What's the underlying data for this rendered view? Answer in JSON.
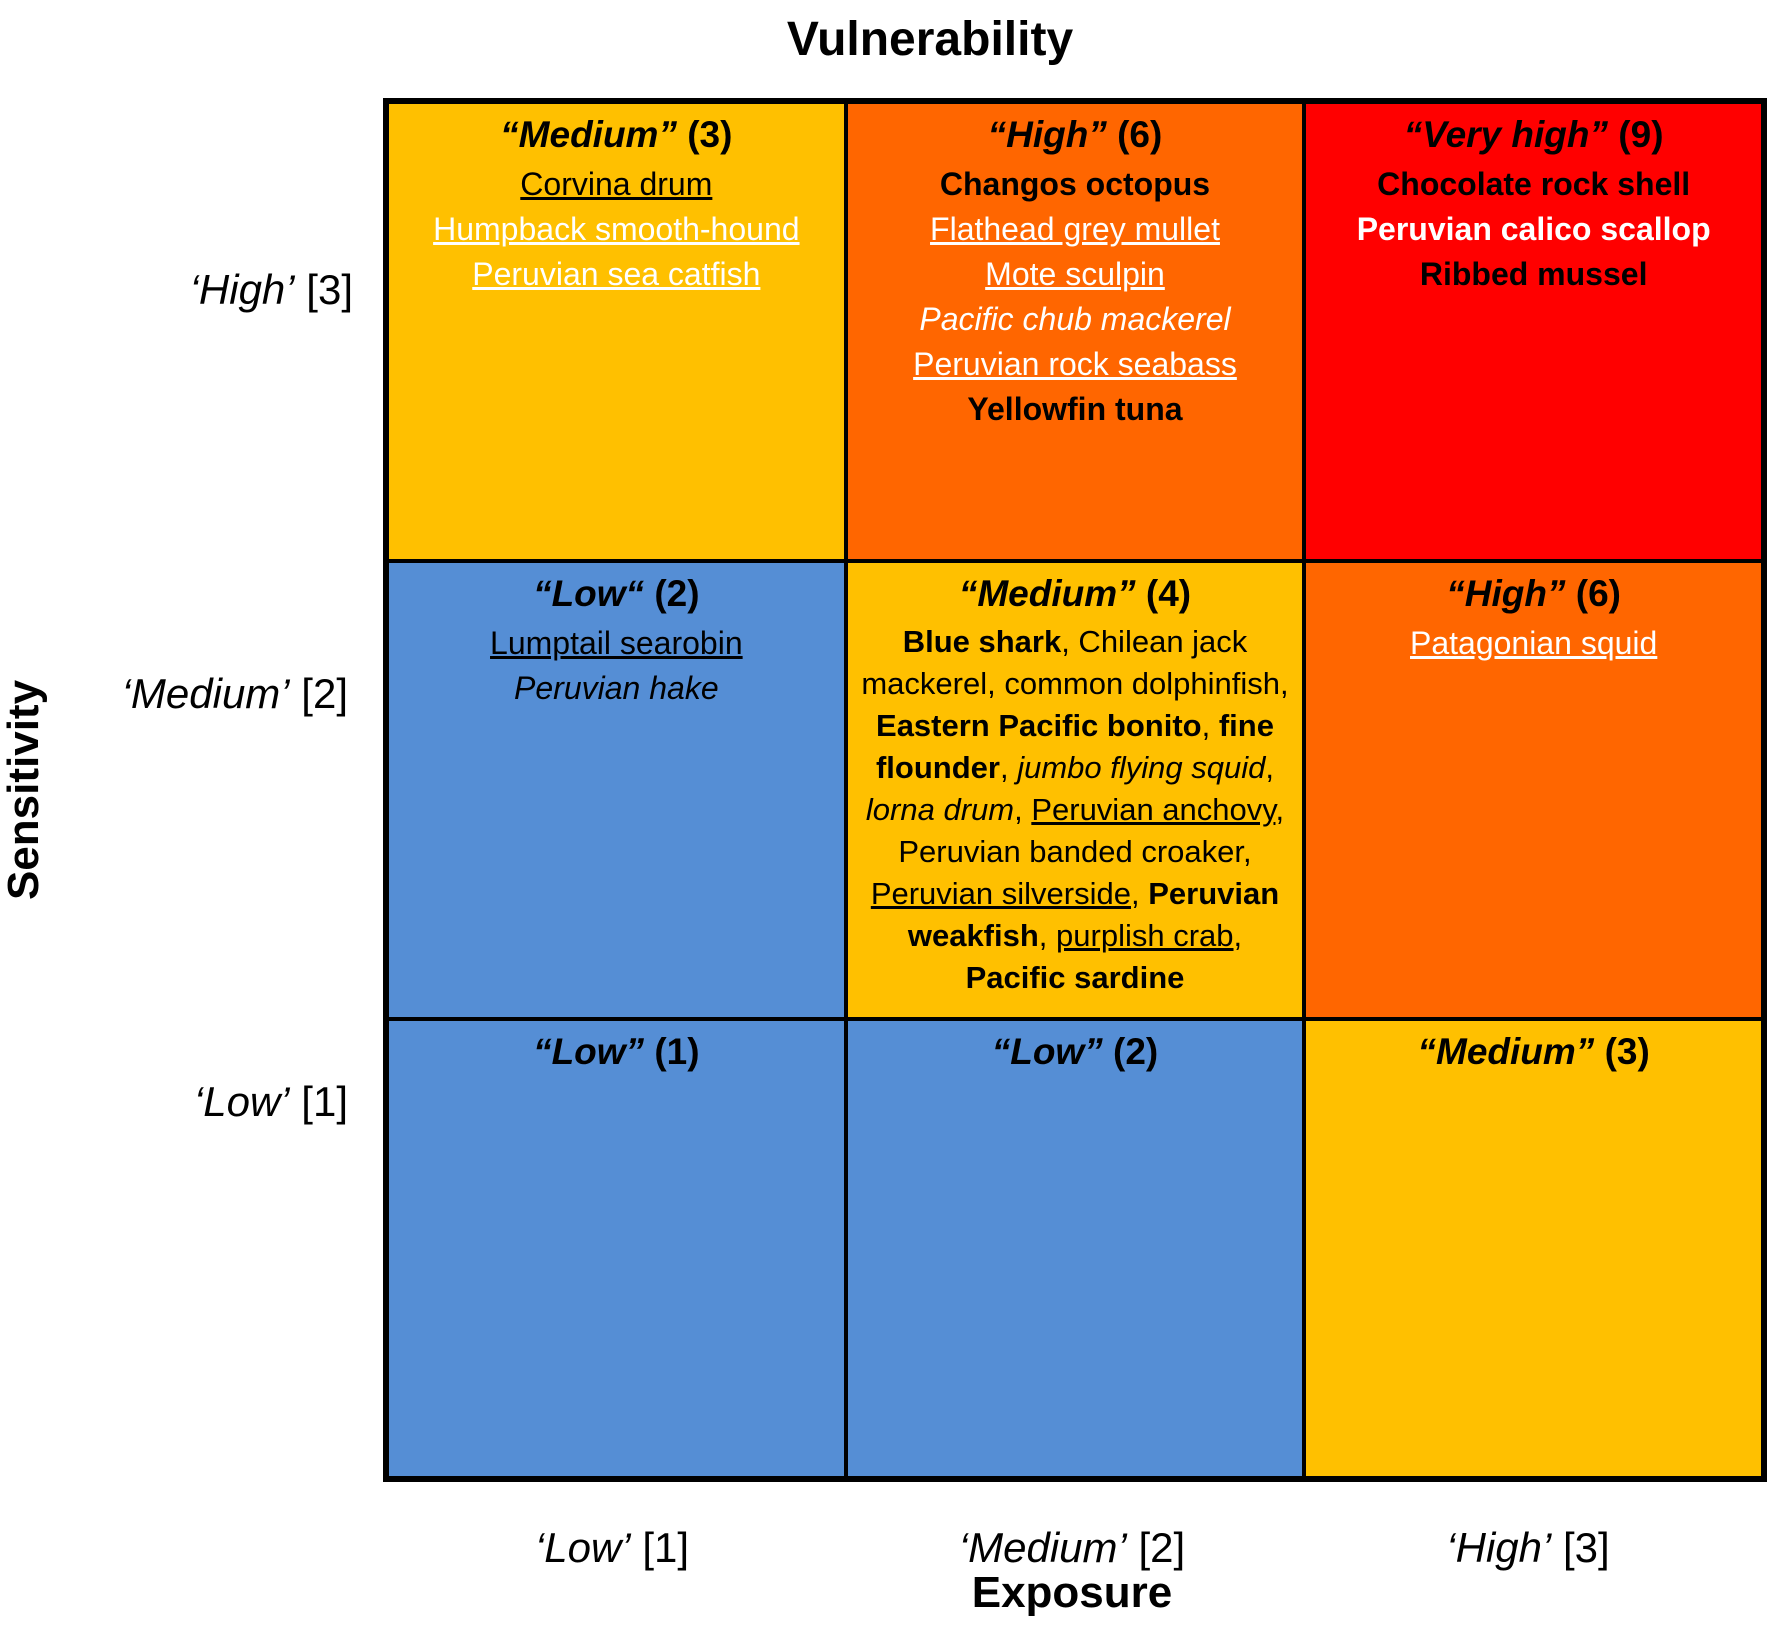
{
  "title": "Vulnerability",
  "x_axis": {
    "title": "Exposure",
    "labels": [
      {
        "name": "‘Low’",
        "score": "[1]"
      },
      {
        "name": "‘Medium’",
        "score": "[2]"
      },
      {
        "name": "‘High’",
        "score": "[3]"
      }
    ]
  },
  "y_axis": {
    "title": "Sensitivity",
    "labels": [
      {
        "name": "‘High’",
        "score": "[3]"
      },
      {
        "name": "‘Medium’",
        "score": "[2]"
      },
      {
        "name": "‘Low’",
        "score": "[1]"
      }
    ]
  },
  "colors": {
    "low": "#558ed5",
    "medium": "#ffc000",
    "high": "#ff6600",
    "very_high": "#ff0000"
  },
  "matrix": {
    "r0c0": {
      "level": "“Medium”",
      "score": "(3)",
      "species": [
        {
          "text": "Corvina drum",
          "style": "u"
        },
        {
          "text": "Humpback smooth-hound",
          "style": "u w"
        },
        {
          "text": "Peruvian sea catfish",
          "style": "u w"
        }
      ]
    },
    "r0c1": {
      "level": "“High”",
      "score": "(6)",
      "species": [
        {
          "text": "Changos octopus",
          "style": "b"
        },
        {
          "text": "Flathead grey mullet",
          "style": "u w"
        },
        {
          "text": "Mote sculpin",
          "style": "u w"
        },
        {
          "text": "Pacific chub mackerel",
          "style": "i w"
        },
        {
          "text": "Peruvian rock seabass",
          "style": "u w"
        },
        {
          "text": "Yellowfin tuna",
          "style": "b"
        }
      ]
    },
    "r0c2": {
      "level": "“Very high”",
      "score": "(9)",
      "species": [
        {
          "text": "Chocolate rock shell",
          "style": "b"
        },
        {
          "text": "Peruvian calico scallop",
          "style": "b w"
        },
        {
          "text": "Ribbed mussel",
          "style": "b"
        }
      ]
    },
    "r1c0": {
      "level": "“Low“",
      "score": "(2)",
      "species": [
        {
          "text": "Lumptail searobin",
          "style": "u"
        },
        {
          "text": "Peruvian hake",
          "style": "i"
        }
      ]
    },
    "r1c1": {
      "level": "“Medium”",
      "score": "(4)",
      "species_inline": [
        {
          "text": "Blue shark",
          "style": "b"
        },
        {
          "text": ", Chilean jack mackerel, common dolphinfish, ",
          "style": ""
        },
        {
          "text": "Eastern Pacific bonito",
          "style": "b"
        },
        {
          "text": ", ",
          "style": ""
        },
        {
          "text": "fine flounder",
          "style": "b"
        },
        {
          "text": ", ",
          "style": ""
        },
        {
          "text": "jumbo flying squid",
          "style": "i"
        },
        {
          "text": ", ",
          "style": ""
        },
        {
          "text": "lorna drum",
          "style": "i"
        },
        {
          "text": ", ",
          "style": ""
        },
        {
          "text": "Peruvian anchovy",
          "style": "u"
        },
        {
          "text": ", Peruvian banded croaker, ",
          "style": ""
        },
        {
          "text": "Peruvian silverside",
          "style": "u"
        },
        {
          "text": ", ",
          "style": ""
        },
        {
          "text": "Peruvian weakfish",
          "style": "b"
        },
        {
          "text": ", ",
          "style": ""
        },
        {
          "text": "purplish crab",
          "style": "u"
        },
        {
          "text": ", ",
          "style": ""
        },
        {
          "text": "Pacific sardine",
          "style": "b"
        }
      ]
    },
    "r1c2": {
      "level": "“High”",
      "score": "(6)",
      "species": [
        {
          "text": "Patagonian squid",
          "style": "u w"
        }
      ]
    },
    "r2c0": {
      "level": "“Low”",
      "score": "(1)",
      "species": []
    },
    "r2c1": {
      "level": "“Low”",
      "score": "(2)",
      "species": []
    },
    "r2c2": {
      "level": "“Medium”",
      "score": "(3)",
      "species": []
    }
  }
}
